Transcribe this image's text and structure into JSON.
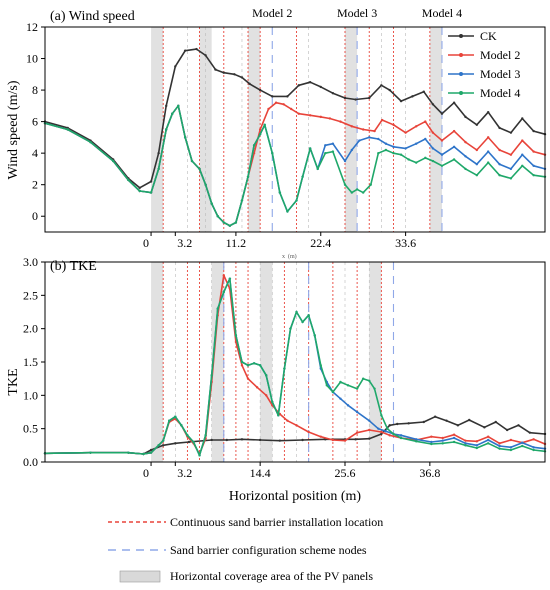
{
  "chart_data": [
    {
      "panel": "a",
      "type": "line",
      "title": "(a) Wind speed",
      "ylabel": "Wind speed (m/s)",
      "ylim": [
        -1,
        12
      ],
      "yticks": [
        0,
        2,
        4,
        6,
        8,
        10,
        12
      ],
      "xlim": [
        -14,
        52
      ],
      "xticks": [
        0,
        3.2,
        11.2,
        22.4,
        33.6
      ],
      "xtick_labels": [
        "0",
        "3.2",
        "11.2",
        "22.4",
        "33.6"
      ],
      "x_axis_note": "x  (m)",
      "top_labels": [
        {
          "text": "Model 2",
          "x": 16.0
        },
        {
          "text": "Model 3",
          "x": 27.2
        },
        {
          "text": "Model 4",
          "x": 38.4
        }
      ],
      "shaded_regions": [
        [
          0,
          1.6
        ],
        [
          6.4,
          8.0
        ],
        [
          12.8,
          14.4
        ],
        [
          25.6,
          27.2
        ],
        [
          36.8,
          38.4
        ]
      ],
      "red_dotted_lines": [
        1.6,
        6.4,
        9.6,
        12.8,
        14.4,
        19.2,
        25.6,
        28.8,
        32.0,
        36.8
      ],
      "blue_dashed_lines": [
        16.0,
        27.2,
        38.4
      ],
      "gray_dashed_lines": [
        4.8,
        7.2,
        12.0,
        20.8,
        30.4,
        33.6
      ],
      "legend": "top-right",
      "series": [
        {
          "name": "CK",
          "color": "#333333",
          "x": [
            -14,
            -11,
            -8,
            -5,
            -3,
            -1.5,
            0,
            1.0,
            2.0,
            3.2,
            4.5,
            6,
            7.2,
            8.5,
            9.6,
            11,
            12,
            13,
            14.4,
            16,
            18,
            19.5,
            21,
            22.4,
            24,
            25.6,
            27,
            28.8,
            30.4,
            31.5,
            33,
            34.5,
            36,
            37.2,
            38.4,
            40,
            41.5,
            43,
            44.5,
            46,
            47.5,
            49,
            50.5,
            52
          ],
          "y": [
            6.0,
            5.6,
            4.8,
            3.6,
            2.4,
            1.8,
            2.2,
            4.0,
            7.0,
            9.5,
            10.5,
            10.6,
            10.2,
            9.3,
            9.1,
            9.0,
            8.8,
            8.4,
            8.0,
            7.6,
            7.6,
            8.3,
            8.5,
            8.2,
            7.8,
            7.5,
            7.4,
            7.5,
            8.3,
            8.0,
            7.3,
            7.6,
            7.9,
            7.1,
            6.5,
            7.2,
            6.3,
            5.8,
            6.6,
            5.6,
            5.3,
            6.2,
            5.4,
            5.2
          ]
        },
        {
          "name": "Model 2",
          "color": "#e8443a",
          "x": [
            -14,
            -11,
            -8,
            -5,
            -3,
            -1.5,
            0,
            1.0,
            2.0,
            2.8,
            3.6,
            4.5,
            5.4,
            6.4,
            7.2,
            8.0,
            8.8,
            9.6,
            10.4,
            11.2,
            12.0,
            12.8,
            13.6,
            14.4,
            15.5,
            16.5,
            17.5,
            18.5,
            19.5,
            21,
            22.4,
            23.6,
            25,
            26.5,
            28,
            29.5,
            30.5,
            32,
            33.6,
            35,
            36.2,
            37.2,
            38.4,
            40,
            41.5,
            43,
            44.5,
            46,
            47.5,
            49,
            50.5,
            52
          ],
          "y": [
            5.9,
            5.5,
            4.7,
            3.5,
            2.3,
            1.6,
            1.5,
            3.0,
            5.5,
            6.5,
            7.0,
            5.0,
            3.5,
            3.0,
            2.0,
            0.8,
            0.0,
            -0.4,
            -0.6,
            -0.4,
            1.0,
            2.5,
            4.0,
            5.5,
            6.8,
            7.2,
            7.1,
            6.8,
            6.5,
            6.4,
            6.3,
            6.2,
            6.0,
            5.7,
            5.5,
            5.4,
            6.1,
            5.8,
            5.3,
            5.7,
            6.0,
            5.3,
            4.8,
            5.4,
            4.7,
            4.2,
            5.0,
            4.2,
            3.9,
            4.8,
            4.1,
            3.9
          ]
        },
        {
          "name": "Model 3",
          "color": "#2e74c9",
          "x": [
            -14,
            -11,
            -8,
            -5,
            -3,
            -1.5,
            0,
            1.0,
            2.0,
            2.8,
            3.6,
            4.5,
            5.4,
            6.4,
            7.2,
            8.0,
            8.8,
            9.6,
            10.4,
            11.2,
            12.0,
            12.8,
            13.6,
            14.4,
            15.0,
            16.0,
            17.0,
            18.0,
            19.2,
            20.0,
            21.0,
            22.0,
            23.0,
            24.0,
            25.6,
            26.5,
            27.5,
            28.8,
            30.0,
            31.0,
            32.0,
            33.6,
            35,
            36.2,
            37.2,
            38.4,
            40,
            41.5,
            43,
            44.5,
            46,
            47.5,
            49,
            50.5,
            52
          ],
          "y": [
            5.9,
            5.5,
            4.7,
            3.5,
            2.3,
            1.6,
            1.5,
            3.0,
            5.5,
            6.5,
            7.0,
            5.0,
            3.5,
            3.0,
            2.0,
            0.8,
            0.0,
            -0.4,
            -0.6,
            -0.4,
            1.0,
            2.5,
            4.5,
            5.2,
            5.8,
            4.0,
            1.5,
            0.3,
            1.0,
            2.5,
            4.3,
            3.0,
            4.5,
            4.6,
            3.5,
            4.2,
            4.8,
            5.0,
            4.9,
            4.6,
            4.4,
            4.3,
            4.6,
            4.9,
            4.3,
            3.9,
            4.4,
            3.8,
            3.3,
            4.1,
            3.3,
            3.0,
            3.9,
            3.2,
            3.0
          ]
        },
        {
          "name": "Model 4",
          "color": "#1fa86a",
          "x": [
            -14,
            -11,
            -8,
            -5,
            -3,
            -1.5,
            0,
            1.0,
            2.0,
            2.8,
            3.6,
            4.5,
            5.4,
            6.4,
            7.2,
            8.0,
            8.8,
            9.6,
            10.4,
            11.2,
            12.0,
            12.8,
            13.6,
            14.4,
            15.0,
            16.0,
            17.0,
            18.0,
            19.2,
            20.0,
            21.0,
            22.0,
            23.0,
            24.0,
            25.6,
            26.5,
            27.2,
            28.0,
            29.0,
            30.0,
            31.0,
            32.0,
            33.0,
            34.0,
            35.0,
            36.2,
            37.2,
            38.4,
            40,
            41.5,
            43,
            44.5,
            46,
            47.5,
            49,
            50.5,
            52
          ],
          "y": [
            5.9,
            5.5,
            4.7,
            3.5,
            2.3,
            1.6,
            1.5,
            3.0,
            5.5,
            6.5,
            7.0,
            5.0,
            3.5,
            3.0,
            2.0,
            0.8,
            0.0,
            -0.4,
            -0.6,
            -0.4,
            1.0,
            2.5,
            4.5,
            5.2,
            5.8,
            4.0,
            1.5,
            0.3,
            1.0,
            2.5,
            4.3,
            3.0,
            4.0,
            4.1,
            2.0,
            1.5,
            1.7,
            1.5,
            2.0,
            4.0,
            4.2,
            4.0,
            3.9,
            3.6,
            3.4,
            3.7,
            3.5,
            3.2,
            3.6,
            3.0,
            2.6,
            3.4,
            2.6,
            2.4,
            3.2,
            2.6,
            2.5
          ]
        }
      ]
    },
    {
      "panel": "b",
      "type": "line",
      "title": "(b) TKE",
      "ylabel": "TKE",
      "xlabel": "Horizontal position (m)",
      "ylim": [
        0,
        3.0
      ],
      "yticks": [
        0.0,
        0.5,
        1.0,
        1.5,
        2.0,
        2.5,
        3.0
      ],
      "xlim": [
        -14,
        52
      ],
      "xticks": [
        0,
        3.2,
        14.4,
        25.6,
        36.8
      ],
      "xtick_labels": [
        "0",
        "3.2",
        "14.4",
        "25.6",
        "36.8"
      ],
      "shaded_regions": [
        [
          0,
          1.6
        ],
        [
          8.0,
          9.6
        ],
        [
          14.4,
          16.0
        ],
        [
          28.8,
          30.4
        ]
      ],
      "red_dotted_lines": [
        1.6,
        4.8,
        6.4,
        9.6,
        11.2,
        12.8,
        17.6,
        20.8,
        24.0,
        27.2,
        30.4
      ],
      "blue_dashed_lines": [
        9.6,
        20.8,
        32.0
      ],
      "gray_dashed_lines": [
        3.2,
        8.0,
        14.4,
        16.0,
        19.2,
        25.6,
        28.8
      ],
      "series": [
        {
          "name": "CK",
          "color": "#333333",
          "x": [
            -14,
            -8,
            -3,
            -1,
            0,
            1.6,
            3.2,
            5,
            8,
            10,
            12,
            14.4,
            17,
            20,
            23,
            25.6,
            27,
            28.8,
            30.4,
            31.5,
            32.5,
            34,
            36,
            37.5,
            39,
            40.5,
            42,
            44,
            45.5,
            47,
            48.5,
            50,
            52
          ],
          "y": [
            0.13,
            0.14,
            0.14,
            0.12,
            0.18,
            0.25,
            0.28,
            0.3,
            0.33,
            0.33,
            0.34,
            0.33,
            0.32,
            0.33,
            0.34,
            0.34,
            0.34,
            0.35,
            0.42,
            0.55,
            0.57,
            0.58,
            0.6,
            0.68,
            0.62,
            0.55,
            0.63,
            0.52,
            0.6,
            0.48,
            0.55,
            0.44,
            0.42
          ]
        },
        {
          "name": "Model 2",
          "color": "#e8443a",
          "x": [
            -14,
            -8,
            -3,
            -1,
            0,
            1.0,
            1.6,
            2.4,
            3.2,
            4.0,
            4.8,
            5.6,
            6.4,
            7.2,
            8.0,
            8.8,
            9.6,
            10.4,
            11.2,
            12.0,
            12.8,
            14.0,
            15.2,
            16.0,
            17.0,
            18.0,
            19.2,
            20.8,
            22.4,
            24.0,
            25.6,
            27.2,
            28.8,
            30.4,
            31.5,
            33,
            35,
            37,
            38.5,
            40,
            41.5,
            43,
            44.5,
            46,
            47.5,
            49,
            50.5,
            52
          ],
          "y": [
            0.13,
            0.14,
            0.14,
            0.12,
            0.14,
            0.25,
            0.32,
            0.6,
            0.65,
            0.55,
            0.38,
            0.28,
            0.12,
            0.35,
            1.2,
            2.2,
            2.8,
            2.6,
            1.8,
            1.45,
            1.25,
            1.12,
            1.0,
            0.85,
            0.72,
            0.62,
            0.55,
            0.45,
            0.38,
            0.33,
            0.32,
            0.44,
            0.48,
            0.45,
            0.4,
            0.36,
            0.33,
            0.38,
            0.36,
            0.41,
            0.32,
            0.31,
            0.38,
            0.28,
            0.33,
            0.29,
            0.34,
            0.27
          ]
        },
        {
          "name": "Model 3",
          "color": "#2e74c9",
          "x": [
            -14,
            -8,
            -3,
            -1,
            0,
            1.0,
            1.6,
            2.4,
            3.2,
            4.0,
            4.8,
            5.6,
            6.4,
            7.2,
            8.0,
            8.8,
            9.6,
            10.4,
            11.2,
            12.0,
            12.8,
            13.6,
            14.4,
            15.2,
            16.0,
            16.8,
            17.6,
            18.4,
            19.2,
            20.0,
            20.8,
            21.6,
            22.4,
            23.2,
            24.0,
            25.0,
            26.0,
            27.2,
            28.8,
            30.0,
            31.0,
            32.0,
            33,
            35,
            37,
            38.5,
            40,
            41.5,
            43,
            44.5,
            46,
            47.5,
            49,
            50.5,
            52
          ],
          "y": [
            0.13,
            0.14,
            0.14,
            0.12,
            0.14,
            0.25,
            0.32,
            0.62,
            0.68,
            0.55,
            0.4,
            0.3,
            0.1,
            0.4,
            1.3,
            2.3,
            2.55,
            2.75,
            1.9,
            1.5,
            1.45,
            1.48,
            1.45,
            1.3,
            0.9,
            0.7,
            1.4,
            2.0,
            2.25,
            2.1,
            2.2,
            1.9,
            1.4,
            1.2,
            1.05,
            0.95,
            0.85,
            0.75,
            0.62,
            0.5,
            0.46,
            0.42,
            0.4,
            0.34,
            0.3,
            0.32,
            0.36,
            0.28,
            0.25,
            0.33,
            0.24,
            0.22,
            0.29,
            0.22,
            0.2
          ]
        },
        {
          "name": "Model 4",
          "color": "#1fa86a",
          "x": [
            -14,
            -8,
            -3,
            -1,
            0,
            1.0,
            1.6,
            2.4,
            3.2,
            4.0,
            4.8,
            5.6,
            6.4,
            7.2,
            8.0,
            8.8,
            9.6,
            10.4,
            11.2,
            12.0,
            12.8,
            13.6,
            14.4,
            15.2,
            16.0,
            16.8,
            17.6,
            18.4,
            19.2,
            20.0,
            20.8,
            21.6,
            22.4,
            23.2,
            24.0,
            25.0,
            26.0,
            27.2,
            28.0,
            28.8,
            29.5,
            30.4,
            31.2,
            32.0,
            33,
            35,
            37,
            38.5,
            40,
            41.5,
            43,
            44.5,
            46,
            47.5,
            49,
            50.5,
            52
          ],
          "y": [
            0.13,
            0.14,
            0.14,
            0.12,
            0.14,
            0.25,
            0.32,
            0.62,
            0.68,
            0.55,
            0.4,
            0.3,
            0.1,
            0.4,
            1.3,
            2.3,
            2.55,
            2.75,
            1.9,
            1.5,
            1.45,
            1.48,
            1.45,
            1.3,
            0.9,
            0.7,
            1.4,
            2.0,
            2.25,
            2.1,
            2.2,
            1.9,
            1.45,
            1.15,
            1.05,
            1.2,
            1.15,
            1.1,
            1.25,
            1.22,
            1.1,
            0.7,
            0.5,
            0.42,
            0.36,
            0.31,
            0.27,
            0.28,
            0.3,
            0.25,
            0.21,
            0.28,
            0.2,
            0.18,
            0.24,
            0.18,
            0.16
          ]
        }
      ]
    }
  ],
  "legend_bottom": [
    {
      "kind": "red-dotted",
      "label": "Continuous sand barrier installation location"
    },
    {
      "kind": "blue-dashed",
      "label": "Sand barrier configuration scheme nodes"
    },
    {
      "kind": "gray-box",
      "label": "Horizontal coverage area of the PV panels"
    }
  ]
}
